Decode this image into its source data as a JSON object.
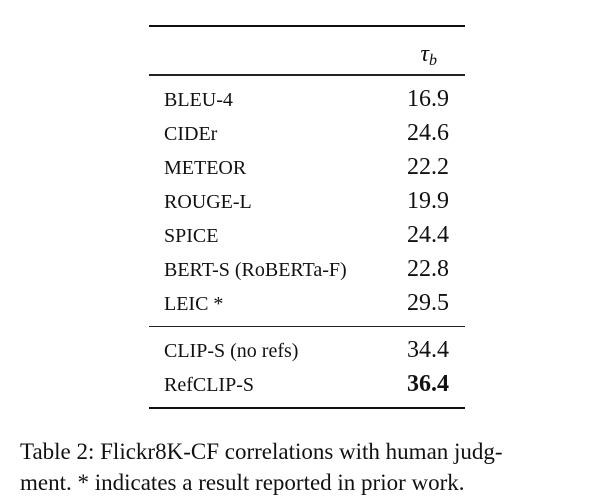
{
  "table": {
    "header": {
      "col1": "",
      "col2_symbol": "τ",
      "col2_sub": "b"
    },
    "group1": [
      {
        "name": "BLEU-4",
        "value": "16.9"
      },
      {
        "name": "CIDEr",
        "value": "24.6"
      },
      {
        "name": "METEOR",
        "value": "22.2"
      },
      {
        "name": "ROUGE-L",
        "value": "19.9"
      },
      {
        "name": "SPICE",
        "value": "24.4"
      },
      {
        "name": "BERT-S (RoBERTa-F)",
        "value": "22.8"
      },
      {
        "name": "LEIC *",
        "value": "29.5"
      }
    ],
    "group2": [
      {
        "name": "CLIP-S (no refs)",
        "value": "34.4"
      },
      {
        "name": "RefCLIP-S",
        "value": "36.4",
        "bold": true
      }
    ]
  },
  "caption": {
    "line1": "Table 2: Flickr8K-CF correlations with human judg-",
    "line2": "ment. * indicates a result reported in prior work."
  }
}
